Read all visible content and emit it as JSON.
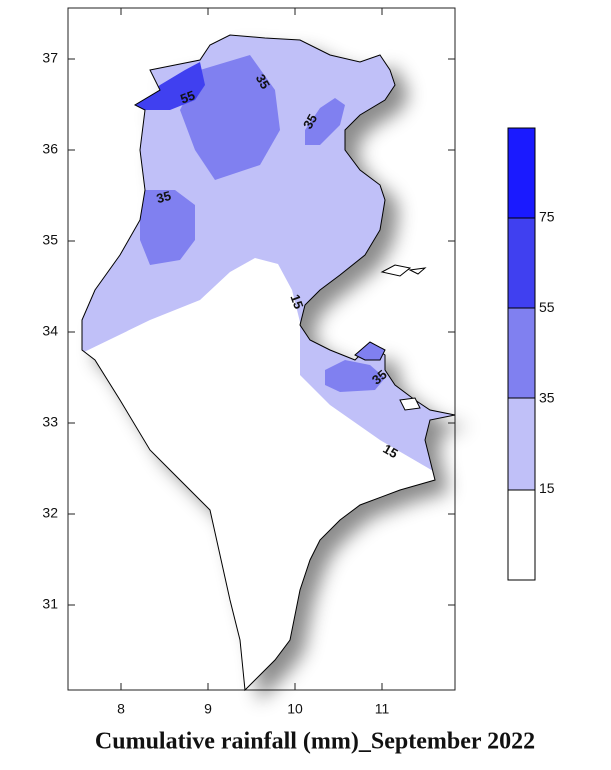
{
  "map": {
    "title": "Cumulative rainfall (mm)_September 2022",
    "x_ticks": [
      "8",
      "9",
      "10",
      "11"
    ],
    "y_ticks": [
      "37",
      "36",
      "35",
      "34",
      "33",
      "32",
      "31"
    ],
    "contour_labels": [
      "55",
      "35",
      "35",
      "35",
      "15",
      "35",
      "15"
    ],
    "legend_labels": [
      "75",
      "55",
      "35",
      "15"
    ]
  }
}
